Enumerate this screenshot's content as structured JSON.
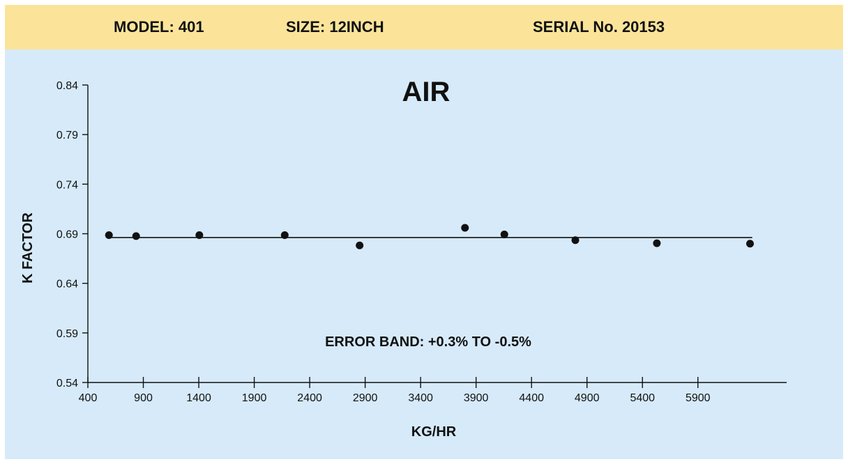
{
  "header": {
    "model": "MODEL: 401",
    "size": "SIZE: 12INCH",
    "serial": "SERIAL No. 20153"
  },
  "colors": {
    "header_bg": "#fbe49a",
    "plot_bg": "#d6eaf9",
    "ink": "#111111"
  },
  "chart_data": {
    "type": "scatter",
    "title": "AIR",
    "xlabel": "KG/HR",
    "ylabel": "K FACTOR",
    "xlim": [
      400,
      6700
    ],
    "ylim": [
      0.54,
      0.84
    ],
    "xticks": [
      400,
      900,
      1400,
      1900,
      2400,
      2900,
      3400,
      3900,
      4400,
      4900,
      5400,
      5900
    ],
    "yticks": [
      0.54,
      0.59,
      0.64,
      0.69,
      0.74,
      0.79,
      0.84
    ],
    "grid": false,
    "annotation": "ERROR BAND: +0.3% TO -0.5%",
    "points": [
      {
        "x": 590,
        "y": 0.6886
      },
      {
        "x": 835,
        "y": 0.6876
      },
      {
        "x": 1405,
        "y": 0.6886
      },
      {
        "x": 2175,
        "y": 0.6886
      },
      {
        "x": 2850,
        "y": 0.6782
      },
      {
        "x": 3800,
        "y": 0.696
      },
      {
        "x": 4155,
        "y": 0.6893
      },
      {
        "x": 4795,
        "y": 0.6835
      },
      {
        "x": 5530,
        "y": 0.6804
      },
      {
        "x": 6370,
        "y": 0.68
      }
    ],
    "reference_line": {
      "x": [
        570,
        6390
      ],
      "y": 0.6862
    }
  }
}
